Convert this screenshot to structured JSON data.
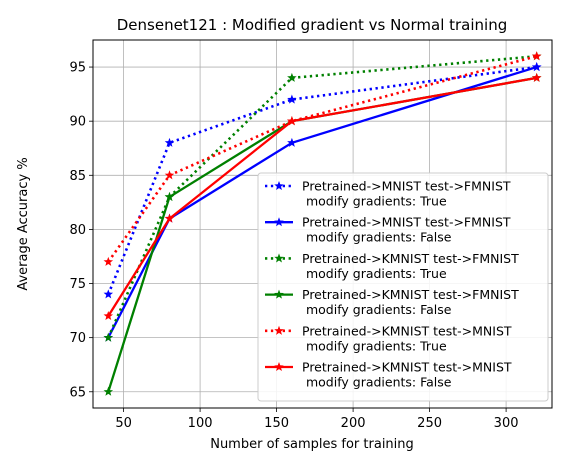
{
  "chart_data": {
    "type": "line",
    "title": "Densenet121 : Modified gradient vs Normal training",
    "xlabel": "Number of samples for training",
    "ylabel": "Average Accuracy %",
    "xlim": [
      30,
      330
    ],
    "ylim": [
      63.5,
      97.5
    ],
    "xticks": [
      50,
      100,
      150,
      200,
      250,
      300
    ],
    "yticks": [
      65,
      70,
      75,
      80,
      85,
      90,
      95
    ],
    "grid": true,
    "legend_position": "lower-right",
    "x": [
      40,
      80,
      160,
      320
    ],
    "series": [
      {
        "name": "Pretrained->MNIST test->FMNIST\n modify gradients: True",
        "values": [
          74,
          88,
          92,
          95
        ],
        "color": "#0000ff",
        "style": "dotted",
        "marker": "star"
      },
      {
        "name": "Pretrained->MNIST test->FMNIST\n modify gradients: False",
        "values": [
          70,
          81,
          88,
          95
        ],
        "color": "#0000ff",
        "style": "solid",
        "marker": "star"
      },
      {
        "name": "Pretrained->KMNIST test->FMNIST\n modify gradients: True",
        "values": [
          70,
          83,
          94,
          96
        ],
        "color": "#008000",
        "style": "dotted",
        "marker": "star"
      },
      {
        "name": "Pretrained->KMNIST test->FMNIST\n modify gradients: False",
        "values": [
          65,
          83,
          90,
          94
        ],
        "color": "#008000",
        "style": "solid",
        "marker": "star"
      },
      {
        "name": "Pretrained->KMNIST test->MNIST\n modify gradients: True",
        "values": [
          77,
          85,
          90,
          96
        ],
        "color": "#ff0000",
        "style": "dotted",
        "marker": "star"
      },
      {
        "name": "Pretrained->KMNIST test->MNIST\n modify gradients: False",
        "values": [
          72,
          81,
          90,
          94
        ],
        "color": "#ff0000",
        "style": "solid",
        "marker": "star"
      }
    ]
  }
}
